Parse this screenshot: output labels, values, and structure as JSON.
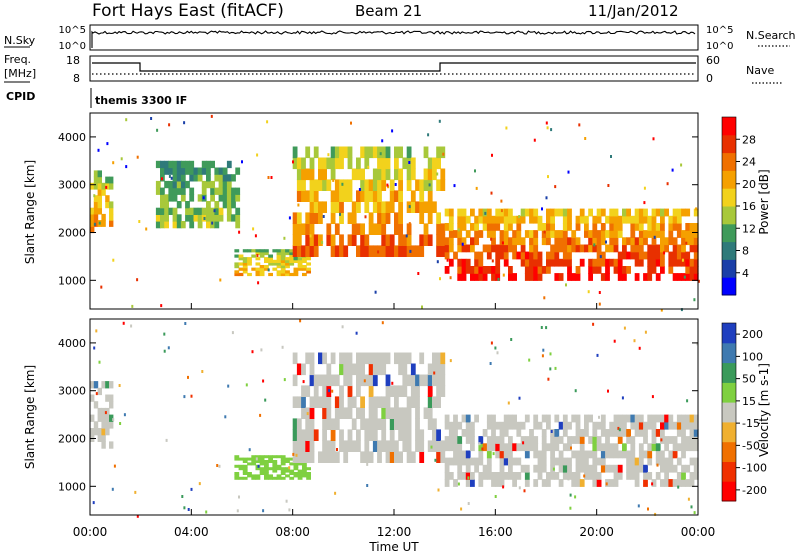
{
  "header": {
    "station": "Fort Hays East (fitACF)",
    "beam": "Beam 21",
    "date": "11/Jan/2012"
  },
  "control_panel": {
    "nsky_label": "N.Sky",
    "nsky_ticks": [
      "10^5",
      "10^0"
    ],
    "nsearch_label": "N.Search",
    "nsearch_ticks": [
      "10^5",
      "10^0"
    ],
    "freq_label_line1": "Freq.",
    "freq_label_line2": "[MHz]",
    "freq_ticks": [
      "18",
      "8"
    ],
    "nave_label": "Nave",
    "nave_ticks": [
      "60",
      "0"
    ],
    "cpid_label": "CPID",
    "cpid_text": "themis 3300 IF"
  },
  "chart_data": [
    {
      "type": "heatmap",
      "title": "",
      "ylabel": "Slant Range [km]",
      "xlabel": "",
      "y_ticks": [
        "4000",
        "3000",
        "2000",
        "1000"
      ],
      "ylim": [
        400,
        4500
      ],
      "colorbar_label": "Power [dB]",
      "colorbar_ticks": [
        "28",
        "24",
        "20",
        "16",
        "12",
        "8",
        "4"
      ],
      "colorbar_range": [
        0,
        30
      ],
      "colors": [
        "#0000ff",
        "#1a3fa8",
        "#2f7a7a",
        "#3f9a5a",
        "#a8c83a",
        "#f2d21c",
        "#f5a000",
        "#f07000",
        "#e83000",
        "#ff0000"
      ],
      "echo_regions": [
        {
          "t": [
            0.0,
            0.9
          ],
          "r": [
            2000,
            3300
          ],
          "p": 22
        },
        {
          "t": [
            2.6,
            5.9
          ],
          "r": [
            2100,
            3500
          ],
          "p": 14
        },
        {
          "t": [
            5.7,
            8.7
          ],
          "r": [
            1100,
            1650
          ],
          "p": 20
        },
        {
          "t": [
            8.0,
            14.0
          ],
          "r": [
            1500,
            3800
          ],
          "p": 24
        },
        {
          "t": [
            14.0,
            24.0
          ],
          "r": [
            1000,
            2500
          ],
          "p": 29
        }
      ]
    },
    {
      "type": "heatmap",
      "title": "",
      "ylabel": "Slant Range [km]",
      "xlabel": "Time UT",
      "x_ticks": [
        "00:00",
        "04:00",
        "08:00",
        "12:00",
        "16:00",
        "20:00",
        "00:00"
      ],
      "xlim": [
        0,
        24
      ],
      "y_ticks": [
        "4000",
        "3000",
        "2000",
        "1000"
      ],
      "ylim": [
        400,
        4500
      ],
      "colorbar_label": "Velocity [m s-1]",
      "colorbar_ticks": [
        "200",
        "100",
        "50",
        "15",
        "-15",
        "-50",
        "-100",
        "-200"
      ],
      "colorbar_range": [
        -250,
        250
      ],
      "colors": [
        "#1f3fbf",
        "#3f7ab0",
        "#3a9a5a",
        "#7fd040",
        "#c8c8c0",
        "#f0b030",
        "#f07000",
        "#f03000",
        "#ff0000"
      ],
      "echo_regions": [
        {
          "t": [
            0.0,
            0.9
          ],
          "r": [
            1800,
            3200
          ],
          "v": 0
        },
        {
          "t": [
            5.7,
            8.7
          ],
          "r": [
            1150,
            1650
          ],
          "v": 45
        },
        {
          "t": [
            8.0,
            14.0
          ],
          "r": [
            1500,
            3800
          ],
          "v": 0
        },
        {
          "t": [
            14.0,
            24.0
          ],
          "r": [
            1000,
            2500
          ],
          "v": 0
        }
      ]
    }
  ]
}
